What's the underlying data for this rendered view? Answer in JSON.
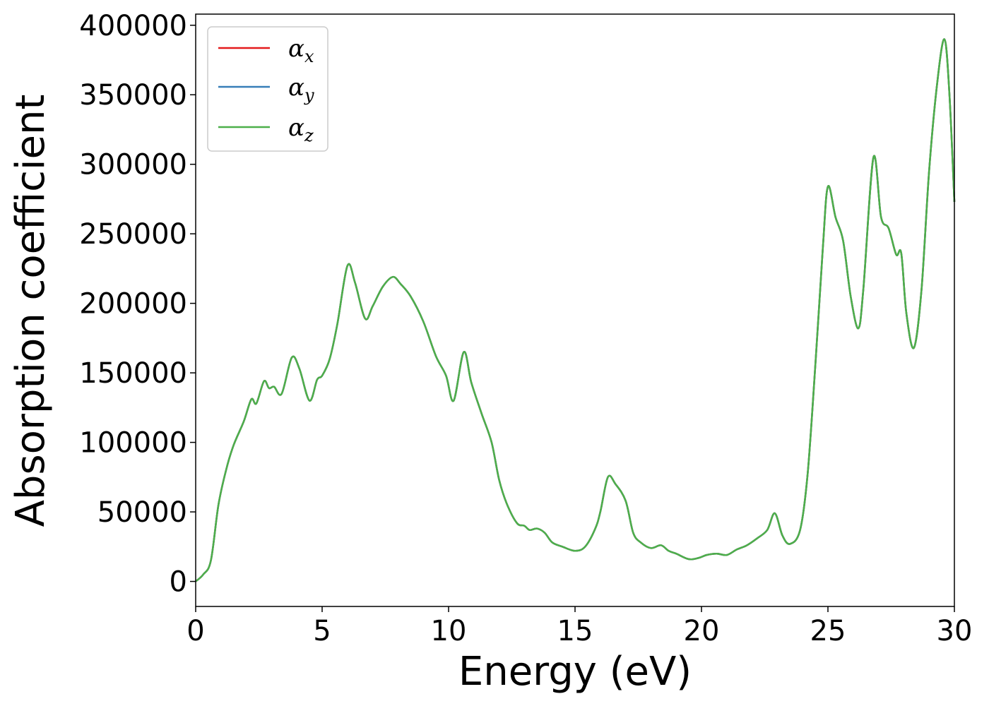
{
  "chart_data": {
    "type": "line",
    "xlabel": "Energy (eV)",
    "ylabel": "Absorption coefficient",
    "xlim": [
      0,
      30
    ],
    "ylim": [
      -18000,
      408000
    ],
    "x_ticks": [
      "0",
      "5",
      "10",
      "15",
      "20",
      "25",
      "30"
    ],
    "x_tick_values": [
      0,
      5,
      10,
      15,
      20,
      25,
      30
    ],
    "y_ticks": [
      "0",
      "50000",
      "100000",
      "150000",
      "200000",
      "250000",
      "300000",
      "350000",
      "400000"
    ],
    "y_tick_values": [
      0,
      50000,
      100000,
      150000,
      200000,
      250000,
      300000,
      350000,
      400000
    ],
    "grid": false,
    "legend_position": "top-left",
    "series": [
      {
        "name": "α",
        "sub": "x",
        "color": "#e41a1c"
      },
      {
        "name": "α",
        "sub": "y",
        "color": "#377eb8"
      },
      {
        "name": "α",
        "sub": "z",
        "color": "#4daf4a"
      }
    ],
    "x": [
      0,
      0.3,
      0.6,
      0.9,
      1.2,
      1.5,
      1.9,
      2.2,
      2.4,
      2.7,
      2.9,
      3.1,
      3.4,
      3.8,
      4.1,
      4.5,
      4.8,
      5.0,
      5.3,
      5.6,
      6.0,
      6.3,
      6.7,
      7.0,
      7.4,
      7.8,
      8.1,
      8.5,
      9.0,
      9.5,
      9.9,
      10.2,
      10.6,
      10.9,
      11.3,
      11.7,
      12.0,
      12.3,
      12.7,
      13.0,
      13.2,
      13.5,
      13.8,
      14.1,
      14.5,
      15.0,
      15.4,
      15.8,
      16.0,
      16.3,
      16.6,
      17.0,
      17.3,
      17.6,
      18.0,
      18.4,
      18.7,
      19.0,
      19.5,
      19.9,
      20.2,
      20.6,
      21.0,
      21.4,
      21.8,
      22.2,
      22.6,
      22.9,
      23.2,
      23.5,
      23.9,
      24.2,
      24.5,
      24.8,
      25.0,
      25.3,
      25.6,
      25.9,
      26.2,
      26.4,
      26.8,
      27.1,
      27.4,
      27.7,
      27.9,
      28.1,
      28.4,
      28.7,
      29.0,
      29.3,
      29.6,
      29.8,
      30.0
    ],
    "values": [
      0,
      5000,
      15000,
      55000,
      80000,
      98000,
      115000,
      131000,
      128000,
      144000,
      139000,
      140000,
      135000,
      161000,
      153000,
      130000,
      145000,
      148000,
      160000,
      185000,
      227000,
      215000,
      189000,
      198000,
      212000,
      219000,
      214000,
      205000,
      187000,
      162000,
      148000,
      130000,
      165000,
      143000,
      121000,
      100000,
      73000,
      56000,
      42000,
      40000,
      37000,
      38000,
      35000,
      28000,
      25000,
      22000,
      25000,
      38000,
      50000,
      75000,
      70000,
      58000,
      35000,
      28000,
      24000,
      26000,
      22000,
      20000,
      16000,
      17000,
      19000,
      20000,
      19000,
      23000,
      26000,
      31000,
      37000,
      49000,
      33000,
      27000,
      37000,
      78000,
      155000,
      240000,
      284000,
      262000,
      245000,
      205000,
      182000,
      210000,
      305000,
      262000,
      254000,
      235000,
      236000,
      193000,
      168000,
      210000,
      295000,
      355000,
      390000,
      352000,
      273000
    ]
  }
}
